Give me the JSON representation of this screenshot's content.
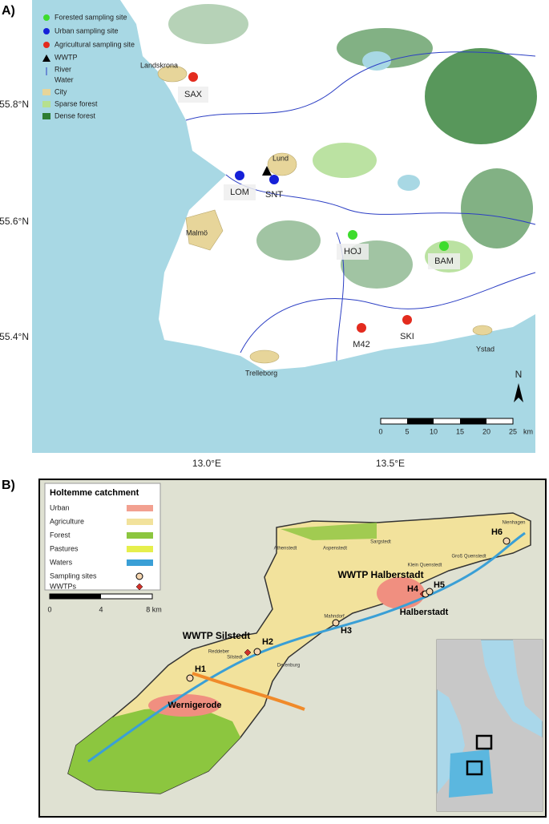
{
  "panel_a": {
    "label": "A)",
    "legend": [
      "Forested sampling site",
      "Urban sampling site",
      "Agricultural sampling site",
      "WWTP",
      "River",
      "Water",
      "City",
      "Sparse forest",
      "Dense forest"
    ],
    "sites": [
      "SAX",
      "LOM",
      "SNT",
      "HOJ",
      "BAM",
      "M42",
      "SKI"
    ],
    "places": [
      "Landskrona",
      "Lund",
      "Malmö",
      "Trelleborg",
      "Ystad"
    ],
    "lat_labels": [
      "55.8°N",
      "55.6°N",
      "55.4°N"
    ],
    "lon_labels": [
      "13.0°E",
      "13.5°E"
    ],
    "scale": [
      "0",
      "5",
      "10",
      "15",
      "20",
      "25"
    ],
    "scale_unit": "km",
    "north": "N"
  },
  "panel_b": {
    "label": "B)",
    "legend_title": "Holtemme catchment",
    "legend": [
      "Urban",
      "Agriculture",
      "Forest",
      "Pastures",
      "Waters",
      "Sampling sites",
      "WWTPs"
    ],
    "scale": [
      "0",
      "4",
      "8 km"
    ],
    "wwtps": [
      "WWTP Halberstadt",
      "WWTP Silstedt"
    ],
    "sites": [
      "H1",
      "H2",
      "H3",
      "H4",
      "H5",
      "H6"
    ],
    "towns": [
      "Halberstadt",
      "Wernigerode"
    ],
    "villages": [
      "Athenstedt",
      "Aspenstedt",
      "Sargstedt",
      "Klein Quenstedt",
      "Groß Quenstedt",
      "Nienhagen",
      "Mahndorf",
      "Derenburg",
      "Reddeber",
      "Silstedt"
    ]
  }
}
